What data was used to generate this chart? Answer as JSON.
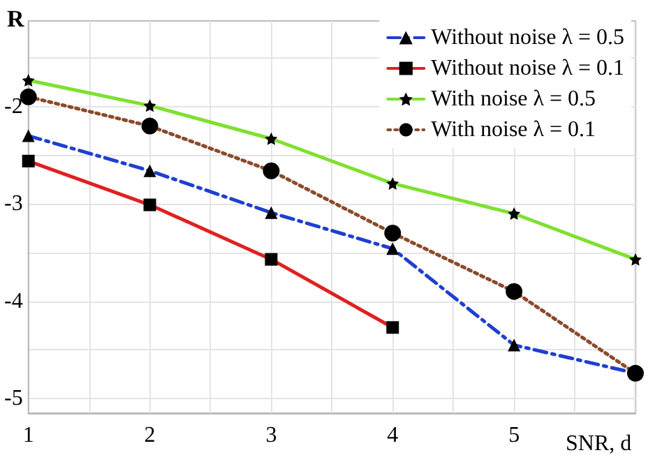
{
  "chart_data": {
    "type": "line",
    "title": "R",
    "xlabel": "SNR, d",
    "x": [
      1,
      2,
      3,
      4,
      5,
      6
    ],
    "series": [
      {
        "name": "Without noise λ = 0.5",
        "color": "#1f3fd0",
        "marker": "triangle",
        "line_style": "dashdot",
        "values": [
          -2.3,
          -2.66,
          -3.09,
          -3.46,
          -4.45,
          -4.74
        ]
      },
      {
        "name": "Without noise λ = 0.1",
        "color": "#e02020",
        "marker": "square",
        "line_style": "solid",
        "values": [
          -2.56,
          -3.01,
          -3.57,
          -4.27,
          null,
          null
        ]
      },
      {
        "name": "With noise λ = 0.5",
        "color": "#7fe030",
        "marker": "star",
        "line_style": "solid",
        "values": [
          -1.73,
          -1.99,
          -2.33,
          -2.79,
          -3.1,
          -3.57
        ]
      },
      {
        "name": "With noise λ = 0.1",
        "color": "#8b4a2a",
        "marker": "circle",
        "line_style": "dotted",
        "values": [
          -1.9,
          -2.2,
          -2.66,
          -3.3,
          -3.9,
          -4.74
        ]
      }
    ],
    "xlim": [
      1,
      6
    ],
    "xticks": [
      1,
      {
        "value": 1.5,
        "label": null
      },
      2,
      {
        "value": 2.5,
        "label": null
      },
      3,
      {
        "value": 3.5,
        "label": null
      },
      4,
      {
        "value": 4.5,
        "label": null
      },
      5,
      {
        "value": 5.5,
        "label": null
      },
      {
        "value": 6,
        "label": null
      }
    ],
    "ylim": [
      -5.15,
      -1.12
    ],
    "yticks": [
      {
        "value": -1.5,
        "label": null
      },
      -2,
      {
        "value": -2.5,
        "label": null
      },
      -3,
      {
        "value": -3.5,
        "label": null
      },
      -4,
      {
        "value": -4.5,
        "label": null
      },
      -5
    ],
    "grid": true,
    "legend": "top right"
  }
}
